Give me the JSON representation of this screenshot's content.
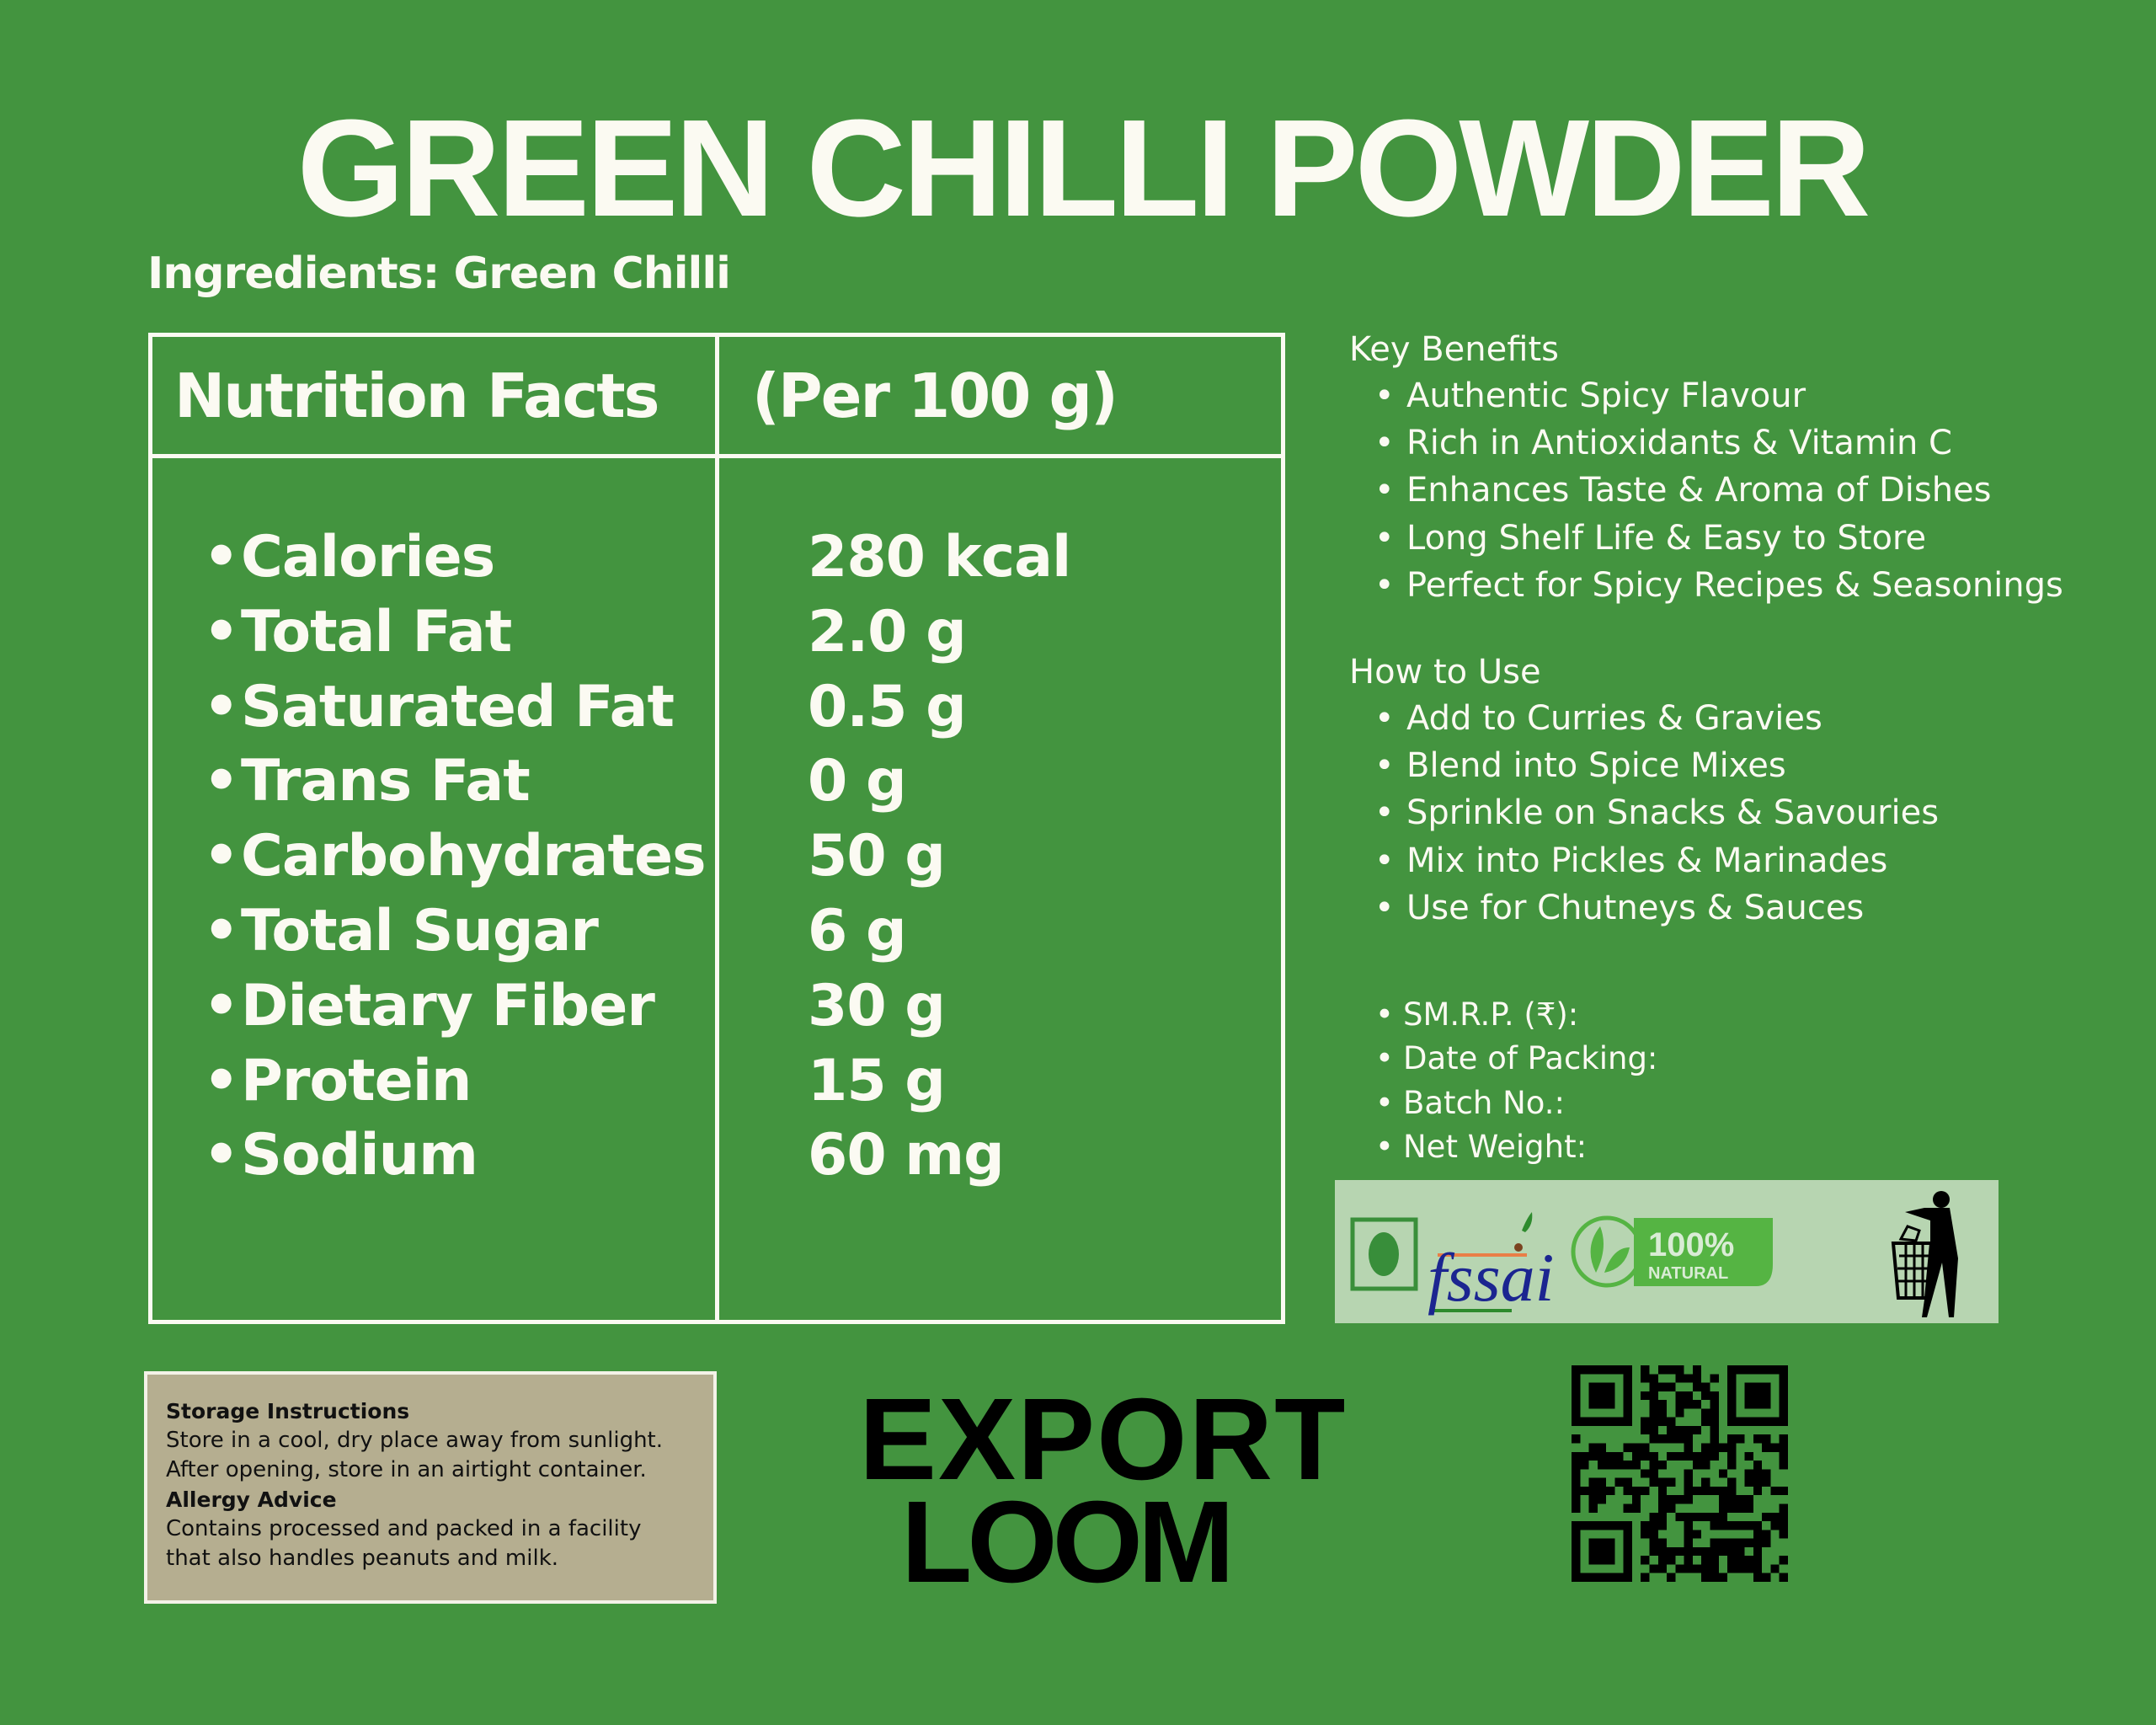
{
  "title": "GREEN CHILLI POWDER",
  "ingredients": "Ingredients: Green Chilli",
  "nutrition": {
    "header_left": "Nutrition Facts",
    "header_right": "(Per 100 g)",
    "rows": [
      {
        "label": "Calories",
        "value": "280 kcal"
      },
      {
        "label": "Total Fat",
        "value": "2.0 g"
      },
      {
        "label": "Saturated Fat",
        "value": "0.5 g"
      },
      {
        "label": "Trans Fat",
        "value": "0 g"
      },
      {
        "label": "Carbohydrates",
        "value": "50 g"
      },
      {
        "label": "Total Sugar",
        "value": "6 g"
      },
      {
        "label": "Dietary Fiber",
        "value": "30 g"
      },
      {
        "label": "Protein",
        "value": "15 g"
      },
      {
        "label": "Sodium",
        "value": "60 mg"
      }
    ]
  },
  "key_benefits": {
    "title": "Key Benefits",
    "items": [
      "Authentic Spicy Flavour",
      "Rich in Antioxidants & Vitamin C",
      "Enhances Taste & Aroma of Dishes",
      "Long Shelf Life & Easy to Store",
      "Perfect for Spicy Recipes & Seasonings"
    ]
  },
  "how_to_use": {
    "title": "How to Use",
    "items": [
      "Add to Curries & Gravies",
      "Blend into Spice Mixes",
      "Sprinkle on Snacks & Savouries",
      "Mix into Pickles & Marinades",
      "Use for Chutneys & Sauces"
    ]
  },
  "meta": [
    "SM.R.P. (₹):",
    "Date of Packing:",
    "Batch No.:",
    "Net Weight:"
  ],
  "logos": {
    "fssai": "fssai",
    "natural_top": "100%",
    "natural_bottom": "NATURAL"
  },
  "storage": {
    "title": "Storage Instructions",
    "lines": [
      "Store in a cool, dry place away from sunlight.",
      "After opening, store in an airtight container."
    ],
    "allergy_title": "Allergy Advice",
    "allergy_lines": [
      "Contains processed and packed in a facility",
      "that also handles peanuts and milk."
    ]
  },
  "brand": {
    "line1": "EXPORT",
    "line2": "LOOM"
  },
  "colors": {
    "background": "#43943f",
    "text": "#fbfaf2",
    "logo_strip": "#b7d5b1",
    "storage_box": "#b5ae90"
  }
}
